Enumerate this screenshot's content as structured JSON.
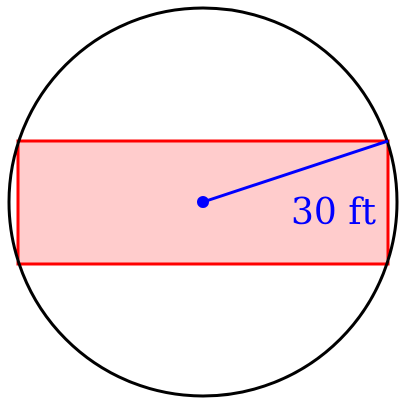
{
  "diagram": {
    "radius_label": "30 ft",
    "colors": {
      "circle_stroke": "#000000",
      "rect_stroke": "#ff0000",
      "rect_fill": "#ffcccc",
      "radius": "#0000ff"
    }
  }
}
